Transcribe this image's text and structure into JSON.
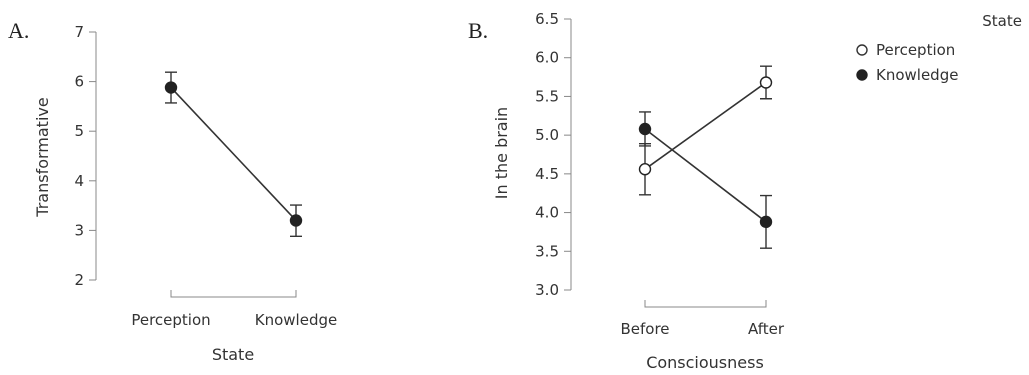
{
  "chart_data": [
    {
      "panel_label": "A.",
      "type": "line",
      "xlabel": "State",
      "ylabel": "Transformative",
      "ylim": [
        2,
        7
      ],
      "yticks": [
        2,
        3,
        4,
        5,
        6,
        7
      ],
      "categories": [
        "Perception",
        "Knowledge"
      ],
      "series": [
        {
          "values": [
            5.88,
            3.2
          ],
          "error_low": [
            5.57,
            2.88
          ],
          "error_high": [
            6.19,
            3.51
          ],
          "marker": "filled"
        }
      ]
    },
    {
      "panel_label": "B.",
      "type": "line",
      "xlabel": "Consciousness",
      "ylabel": "In the brain",
      "ylim": [
        3.0,
        6.5
      ],
      "yticks": [
        "3.0",
        "3.5",
        "4.0",
        "4.5",
        "5.0",
        "5.5",
        "6.0",
        "6.5"
      ],
      "categories": [
        "Before",
        "After"
      ],
      "legend_title": "State",
      "legend_position": "top-right",
      "series": [
        {
          "name": "Perception",
          "values": [
            4.56,
            5.68
          ],
          "error_low": [
            4.23,
            5.47
          ],
          "error_high": [
            4.89,
            5.89
          ],
          "marker": "open"
        },
        {
          "name": "Knowledge",
          "values": [
            5.08,
            3.88
          ],
          "error_low": [
            4.86,
            3.54
          ],
          "error_high": [
            5.3,
            4.22
          ],
          "marker": "filled"
        }
      ]
    }
  ]
}
